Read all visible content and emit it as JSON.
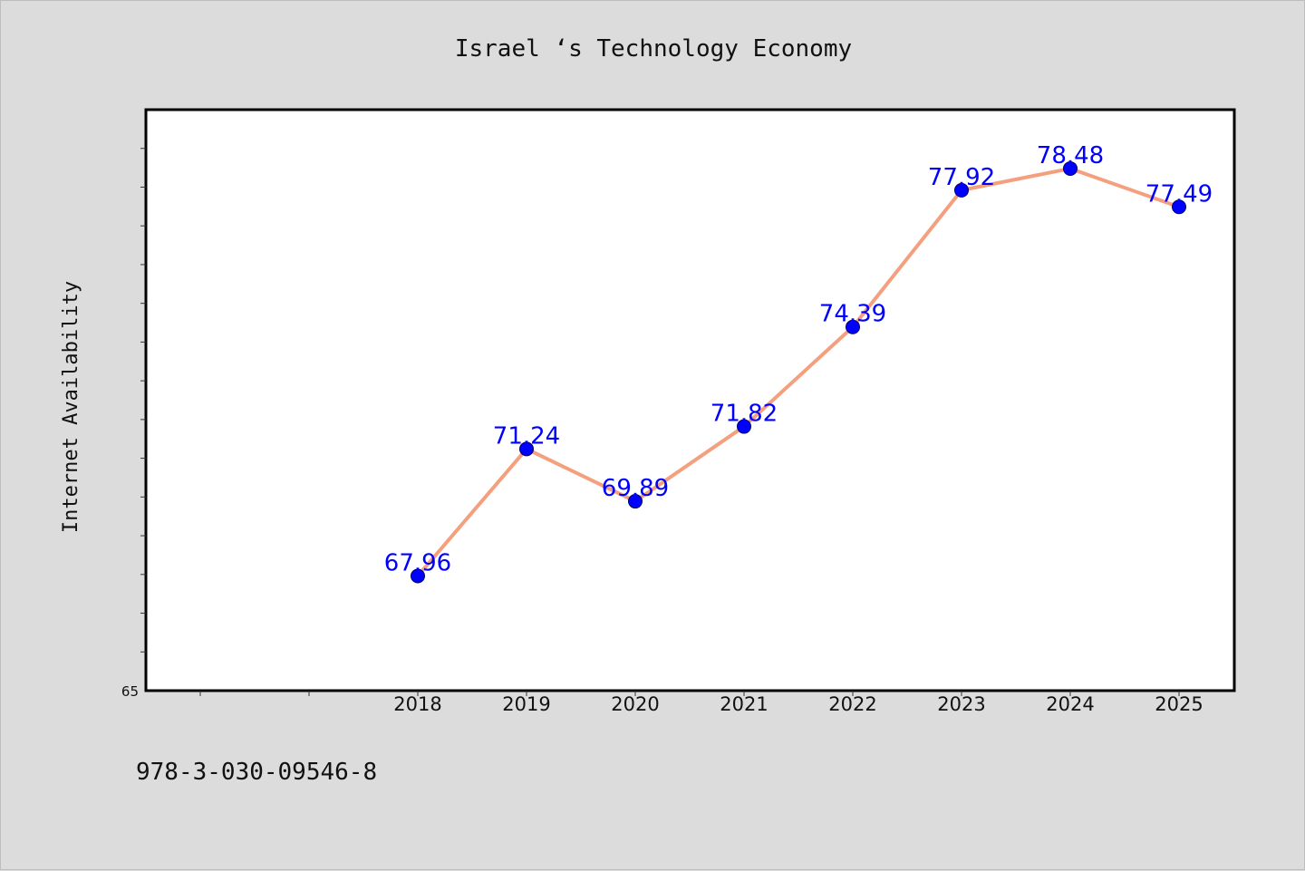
{
  "chart_data": {
    "type": "line",
    "title": "Israel ‘s Technology Economy",
    "ylabel": "Internet Availability",
    "xlabel": "",
    "categories": [
      "2018",
      "2019",
      "2020",
      "2021",
      "2022",
      "2023",
      "2024",
      "2025"
    ],
    "series": [
      {
        "values": [
          67.96,
          71.24,
          69.89,
          71.82,
          74.39,
          77.92,
          78.48,
          77.49
        ]
      }
    ],
    "data_labels": [
      "67.96",
      "71.24",
      "69.89",
      "71.82",
      "74.39",
      "77.92",
      "78.48",
      "77.49"
    ],
    "y_tick_labels": [
      "65"
    ],
    "ylim": [
      65,
      80
    ],
    "grid": false,
    "line_color": "#f4a07e",
    "marker_color": "#0000ff",
    "label_color": "#0000ff"
  },
  "footer": {
    "code": "978-3-030-09546-8"
  }
}
